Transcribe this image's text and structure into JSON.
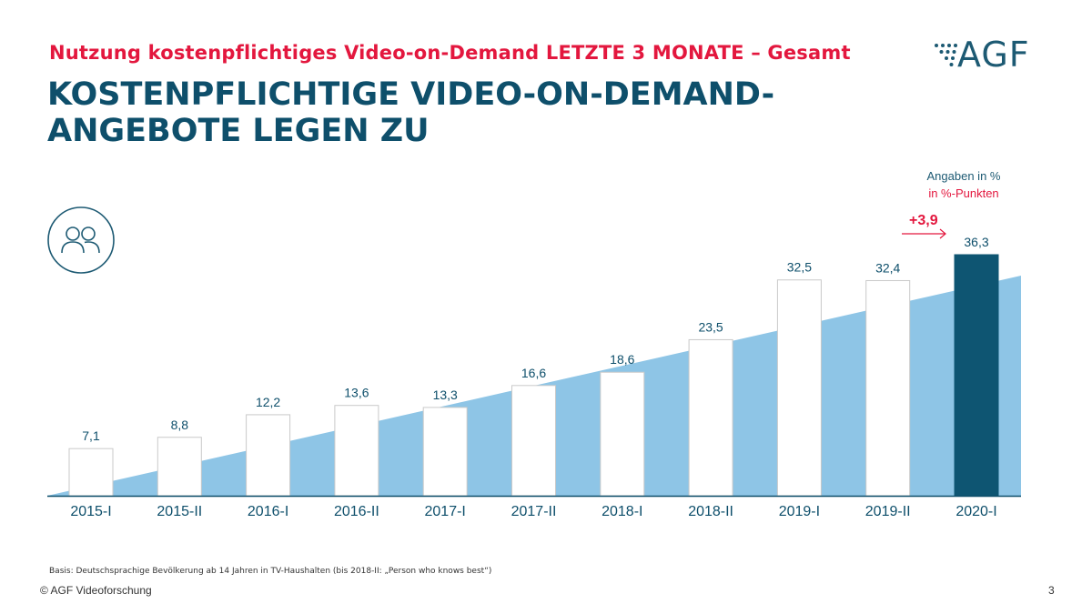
{
  "header": {
    "supertitle": "Nutzung kostenpflichtiges Video-on-Demand LETZTE 3 MONATE – Gesamt",
    "headline_line1": "KOSTENPFLICHTIGE VIDEO-ON-DEMAND-",
    "headline_line2": "ANGEBOTE LEGEN ZU"
  },
  "logo": {
    "text": "AGF",
    "icon": "agf-logo-icon"
  },
  "people_icon": "people-group-icon",
  "legend": {
    "line1": "Angaben in %",
    "line2": "in %-Punkten"
  },
  "delta": {
    "label": "+3,9",
    "icon": "arrow-right-icon"
  },
  "colors": {
    "red": "#e3173e",
    "navy": "#0e4f6b",
    "teal": "#1d5a73",
    "area": "#8ec5e6",
    "bar_outline": "#c9c9c9",
    "highlight_bar": "#0e5572"
  },
  "chart_data": {
    "type": "bar",
    "categories": [
      "2015-I",
      "2015-II",
      "2016-I",
      "2016-II",
      "2017-I",
      "2017-II",
      "2018-I",
      "2018-II",
      "2019-I",
      "2019-II",
      "2020-I"
    ],
    "values": [
      7.1,
      8.8,
      12.2,
      13.6,
      13.3,
      16.6,
      18.6,
      23.5,
      32.5,
      32.4,
      36.3
    ],
    "value_labels": [
      "7,1",
      "8,8",
      "12,2",
      "13,6",
      "13,3",
      "16,6",
      "18,6",
      "23,5",
      "32,5",
      "32,4",
      "36,3"
    ],
    "highlight_index": 10,
    "background": "rising trend area behind bars",
    "ylim": [
      0,
      36.3
    ],
    "grid": false,
    "legend": "none"
  },
  "footer": {
    "footnote": "Basis: Deutschsprachige Bevölkerung ab 14 Jahren in TV-Haushalten (bis 2018-II: „Person who knows best“)",
    "copyright": "© AGF Videoforschung",
    "page": "3"
  }
}
